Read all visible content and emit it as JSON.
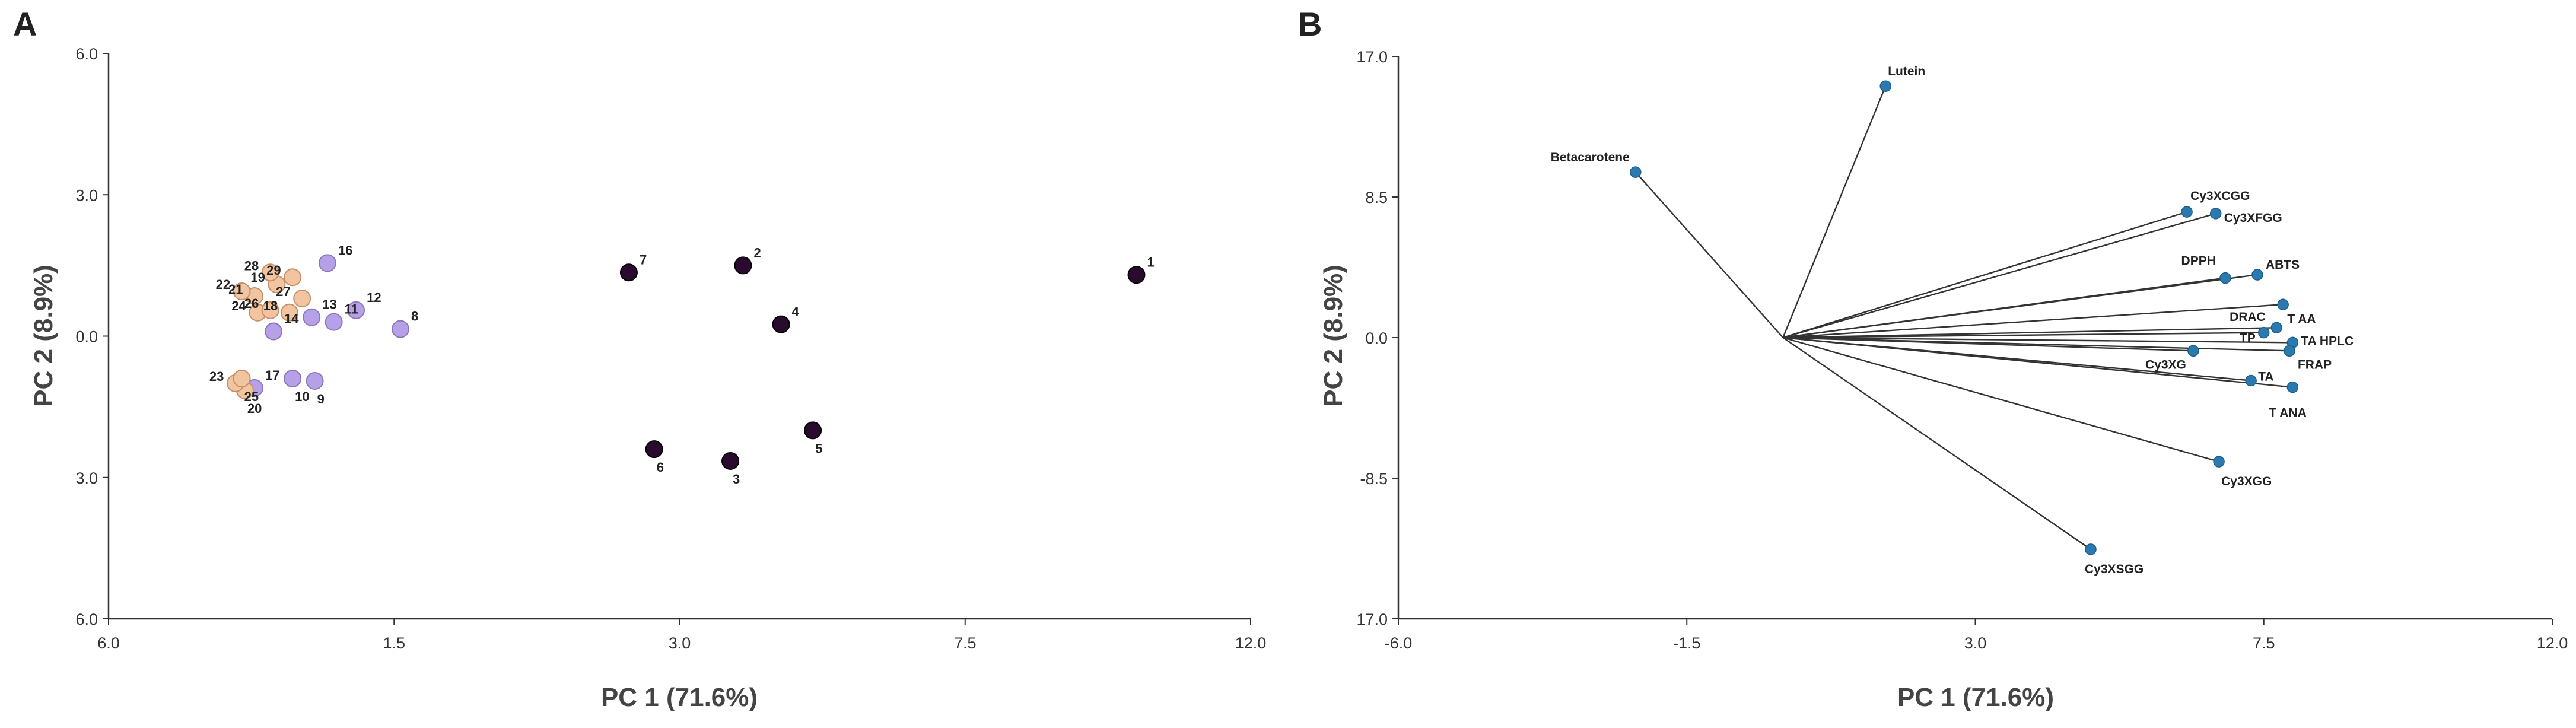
{
  "chart_data": [
    {
      "panel": "A",
      "type": "scatter",
      "xlabel": "PC 1 (71.6%)",
      "ylabel": "PC 2 (8.9%)",
      "x_ticks": [
        "6.0",
        "1.5",
        "3.0",
        "7.5",
        "12.0"
      ],
      "y_ticks": [
        "6.0",
        "3.0",
        "0.0",
        "3.0",
        "6.0"
      ],
      "xlim": [
        -6.0,
        12.0
      ],
      "ylim": [
        -6.0,
        6.0
      ],
      "legend": "none",
      "group_colors": {
        "group1": "#2a0a2e",
        "group2": "#b6a0e8",
        "group3": "#f2c4a0"
      },
      "points": [
        {
          "label": "1",
          "x": 10.2,
          "y": 1.3,
          "group": "group1"
        },
        {
          "label": "2",
          "x": 4.0,
          "y": 1.5,
          "group": "group1"
        },
        {
          "label": "3",
          "x": 3.8,
          "y": -2.65,
          "group": "group1"
        },
        {
          "label": "4",
          "x": 4.6,
          "y": 0.25,
          "group": "group1"
        },
        {
          "label": "5",
          "x": 5.1,
          "y": -2.0,
          "group": "group1"
        },
        {
          "label": "6",
          "x": 2.6,
          "y": -2.4,
          "group": "group1"
        },
        {
          "label": "7",
          "x": 2.2,
          "y": 1.35,
          "group": "group1"
        },
        {
          "label": "8",
          "x": -1.4,
          "y": 0.15,
          "group": "group2"
        },
        {
          "label": "9",
          "x": -2.75,
          "y": -0.95,
          "group": "group2"
        },
        {
          "label": "10",
          "x": -3.1,
          "y": -0.9,
          "group": "group2"
        },
        {
          "label": "11",
          "x": -2.45,
          "y": 0.3,
          "group": "group2"
        },
        {
          "label": "12",
          "x": -2.1,
          "y": 0.55,
          "group": "group2"
        },
        {
          "label": "13",
          "x": -2.8,
          "y": 0.4,
          "group": "group2"
        },
        {
          "label": "14",
          "x": -3.4,
          "y": 0.1,
          "group": "group2"
        },
        {
          "label": "16",
          "x": -2.55,
          "y": 1.55,
          "group": "group2"
        },
        {
          "label": "17",
          "x": -3.7,
          "y": -1.1,
          "group": "group2"
        },
        {
          "label": "18",
          "x": -3.15,
          "y": 0.5,
          "group": "group3"
        },
        {
          "label": "19",
          "x": -3.35,
          "y": 1.1,
          "group": "group3"
        },
        {
          "label": "20",
          "x": -3.85,
          "y": -1.15,
          "group": "group3"
        },
        {
          "label": "21",
          "x": -3.7,
          "y": 0.85,
          "group": "group3"
        },
        {
          "label": "22",
          "x": -3.9,
          "y": 0.95,
          "group": "group3"
        },
        {
          "label": "23",
          "x": -4.0,
          "y": -1.0,
          "group": "group3"
        },
        {
          "label": "24",
          "x": -3.65,
          "y": 0.5,
          "group": "group3"
        },
        {
          "label": "25",
          "x": -3.9,
          "y": -0.9,
          "group": "group3"
        },
        {
          "label": "26",
          "x": -3.45,
          "y": 0.55,
          "group": "group3"
        },
        {
          "label": "27",
          "x": -2.95,
          "y": 0.8,
          "group": "group3"
        },
        {
          "label": "28",
          "x": -3.45,
          "y": 1.35,
          "group": "group3"
        },
        {
          "label": "29",
          "x": -3.1,
          "y": 1.25,
          "group": "group3"
        }
      ]
    },
    {
      "panel": "B",
      "type": "biplot",
      "xlabel": "PC 1 (71.6%)",
      "ylabel": "PC 2 (8.9%)",
      "x_ticks": [
        "-6.0",
        "-1.5",
        "3.0",
        "7.5",
        "12.0"
      ],
      "y_ticks": [
        "17.0",
        "8.5",
        "0.0",
        "-8.5",
        "17.0"
      ],
      "xlim": [
        -6.0,
        12.0
      ],
      "ylim": [
        -17.0,
        17.0
      ],
      "origin": [
        0.0,
        0.0
      ],
      "legend": "none",
      "point_color": "#2a7ab0",
      "vectors": [
        {
          "label": "Lutein",
          "x": 1.6,
          "y": 15.2
        },
        {
          "label": "Betacarotene",
          "x": -2.3,
          "y": 10.0
        },
        {
          "label": "Cy3XCGG",
          "x": 6.3,
          "y": 7.6
        },
        {
          "label": "Cy3XFGG",
          "x": 6.75,
          "y": 7.5
        },
        {
          "label": "DPPH",
          "x": 6.9,
          "y": 3.6
        },
        {
          "label": "ABTS",
          "x": 7.4,
          "y": 3.8
        },
        {
          "label": "DRAC",
          "x": 7.8,
          "y": 2.0
        },
        {
          "label": "T AA",
          "x": 7.7,
          "y": 0.6
        },
        {
          "label": "TP",
          "x": 7.5,
          "y": 0.3
        },
        {
          "label": "TA HPLC",
          "x": 7.95,
          "y": -0.3
        },
        {
          "label": "FRAP",
          "x": 7.9,
          "y": -0.8
        },
        {
          "label": "Cy3XG",
          "x": 6.4,
          "y": -0.8
        },
        {
          "label": "TA",
          "x": 7.3,
          "y": -2.6
        },
        {
          "label": "T ANA",
          "x": 7.95,
          "y": -3.0
        },
        {
          "label": "Cy3XGG",
          "x": 6.8,
          "y": -7.5
        },
        {
          "label": "Cy3XSGG",
          "x": 4.8,
          "y": -12.8
        }
      ]
    }
  ],
  "panel_a": {
    "letter": "A"
  },
  "panel_b": {
    "letter": "B"
  }
}
